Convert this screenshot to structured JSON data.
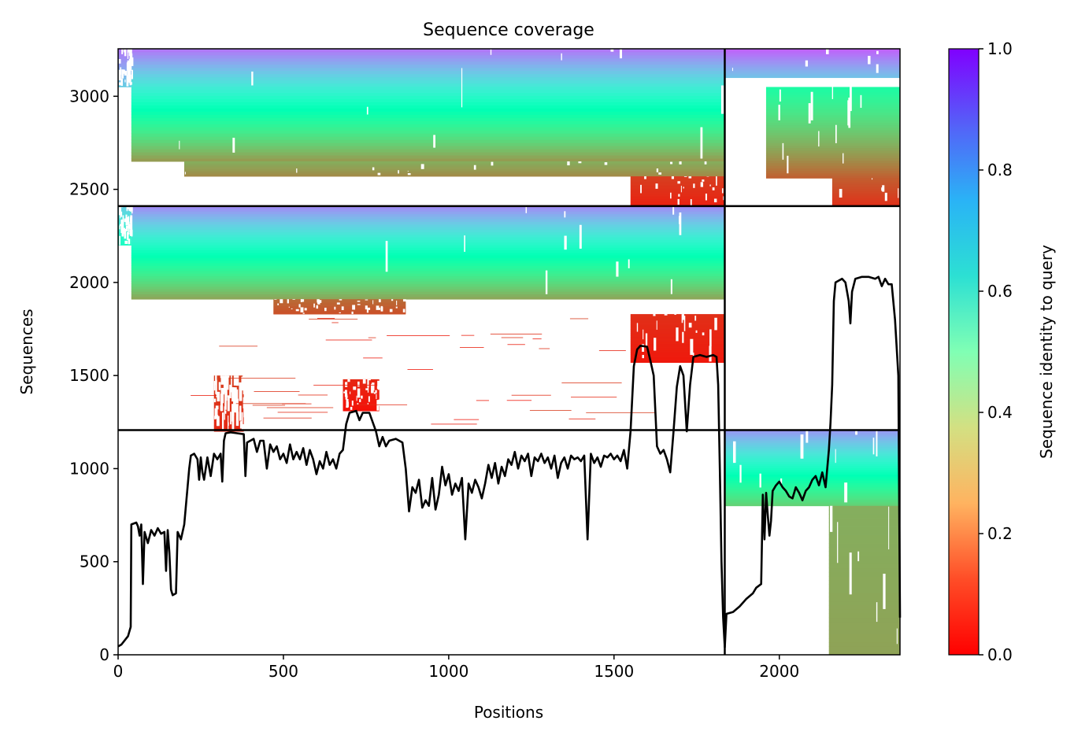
{
  "chart_data": {
    "type": "heatmap",
    "title": "Sequence coverage",
    "xlabel": "Positions",
    "ylabel": "Sequences",
    "xlim": [
      0,
      2365
    ],
    "ylim": [
      0,
      3255
    ],
    "xticks": [
      0,
      500,
      1000,
      1500,
      2000
    ],
    "yticks": [
      0,
      500,
      1000,
      1500,
      2000,
      2500,
      3000
    ],
    "grid": false,
    "colorbar": {
      "label": "Sequence identity to query",
      "colormap": "rainbow_r",
      "min": 0.0,
      "max": 1.0,
      "ticks": [
        0.0,
        0.2,
        0.4,
        0.6,
        0.8,
        1.0
      ]
    },
    "chain_boundaries": {
      "x": [
        1835
      ],
      "y": [
        1207,
        2410
      ]
    },
    "coverage_line": {
      "color": "#000000",
      "points": [
        [
          0,
          45
        ],
        [
          10,
          55
        ],
        [
          30,
          100
        ],
        [
          38,
          150
        ],
        [
          40,
          700
        ],
        [
          55,
          710
        ],
        [
          60,
          690
        ],
        [
          65,
          640
        ],
        [
          70,
          700
        ],
        [
          75,
          380
        ],
        [
          80,
          660
        ],
        [
          90,
          600
        ],
        [
          100,
          670
        ],
        [
          110,
          640
        ],
        [
          120,
          680
        ],
        [
          130,
          650
        ],
        [
          140,
          660
        ],
        [
          145,
          450
        ],
        [
          150,
          670
        ],
        [
          155,
          550
        ],
        [
          160,
          350
        ],
        [
          165,
          320
        ],
        [
          175,
          330
        ],
        [
          180,
          660
        ],
        [
          190,
          620
        ],
        [
          200,
          700
        ],
        [
          210,
          900
        ],
        [
          215,
          1000
        ],
        [
          220,
          1070
        ],
        [
          230,
          1080
        ],
        [
          240,
          1050
        ],
        [
          245,
          940
        ],
        [
          250,
          1060
        ],
        [
          255,
          980
        ],
        [
          260,
          940
        ],
        [
          270,
          1060
        ],
        [
          280,
          960
        ],
        [
          290,
          1080
        ],
        [
          300,
          1050
        ],
        [
          310,
          1080
        ],
        [
          315,
          930
        ],
        [
          320,
          1150
        ],
        [
          325,
          1190
        ],
        [
          340,
          1195
        ],
        [
          360,
          1190
        ],
        [
          380,
          1185
        ],
        [
          385,
          960
        ],
        [
          390,
          1140
        ],
        [
          400,
          1150
        ],
        [
          410,
          1160
        ],
        [
          420,
          1090
        ],
        [
          430,
          1150
        ],
        [
          440,
          1150
        ],
        [
          450,
          1000
        ],
        [
          460,
          1130
        ],
        [
          470,
          1090
        ],
        [
          480,
          1120
        ],
        [
          490,
          1050
        ],
        [
          500,
          1080
        ],
        [
          510,
          1030
        ],
        [
          520,
          1130
        ],
        [
          530,
          1050
        ],
        [
          540,
          1090
        ],
        [
          550,
          1050
        ],
        [
          560,
          1110
        ],
        [
          570,
          1020
        ],
        [
          580,
          1100
        ],
        [
          590,
          1050
        ],
        [
          600,
          970
        ],
        [
          610,
          1040
        ],
        [
          620,
          1000
        ],
        [
          630,
          1090
        ],
        [
          640,
          1020
        ],
        [
          650,
          1050
        ],
        [
          660,
          1000
        ],
        [
          670,
          1080
        ],
        [
          680,
          1100
        ],
        [
          690,
          1240
        ],
        [
          700,
          1300
        ],
        [
          720,
          1310
        ],
        [
          730,
          1260
        ],
        [
          740,
          1300
        ],
        [
          760,
          1300
        ],
        [
          780,
          1200
        ],
        [
          790,
          1120
        ],
        [
          800,
          1170
        ],
        [
          810,
          1120
        ],
        [
          820,
          1150
        ],
        [
          840,
          1160
        ],
        [
          860,
          1140
        ],
        [
          870,
          1000
        ],
        [
          880,
          770
        ],
        [
          890,
          900
        ],
        [
          900,
          870
        ],
        [
          910,
          940
        ],
        [
          920,
          790
        ],
        [
          930,
          830
        ],
        [
          940,
          800
        ],
        [
          950,
          950
        ],
        [
          960,
          780
        ],
        [
          970,
          860
        ],
        [
          980,
          1010
        ],
        [
          990,
          910
        ],
        [
          1000,
          970
        ],
        [
          1010,
          860
        ],
        [
          1020,
          920
        ],
        [
          1030,
          880
        ],
        [
          1040,
          950
        ],
        [
          1050,
          620
        ],
        [
          1060,
          920
        ],
        [
          1070,
          870
        ],
        [
          1080,
          940
        ],
        [
          1090,
          900
        ],
        [
          1100,
          840
        ],
        [
          1110,
          920
        ],
        [
          1120,
          1020
        ],
        [
          1130,
          950
        ],
        [
          1140,
          1030
        ],
        [
          1150,
          920
        ],
        [
          1160,
          1010
        ],
        [
          1170,
          960
        ],
        [
          1180,
          1050
        ],
        [
          1190,
          1020
        ],
        [
          1200,
          1090
        ],
        [
          1210,
          1000
        ],
        [
          1220,
          1070
        ],
        [
          1230,
          1040
        ],
        [
          1240,
          1080
        ],
        [
          1250,
          960
        ],
        [
          1260,
          1060
        ],
        [
          1270,
          1040
        ],
        [
          1280,
          1080
        ],
        [
          1290,
          1030
        ],
        [
          1300,
          1060
        ],
        [
          1310,
          1000
        ],
        [
          1320,
          1070
        ],
        [
          1330,
          950
        ],
        [
          1340,
          1030
        ],
        [
          1350,
          1060
        ],
        [
          1360,
          1000
        ],
        [
          1370,
          1070
        ],
        [
          1380,
          1050
        ],
        [
          1390,
          1060
        ],
        [
          1400,
          1040
        ],
        [
          1410,
          1070
        ],
        [
          1420,
          620
        ],
        [
          1430,
          1080
        ],
        [
          1440,
          1030
        ],
        [
          1450,
          1060
        ],
        [
          1460,
          1010
        ],
        [
          1470,
          1070
        ],
        [
          1480,
          1060
        ],
        [
          1490,
          1080
        ],
        [
          1500,
          1050
        ],
        [
          1510,
          1070
        ],
        [
          1520,
          1040
        ],
        [
          1530,
          1100
        ],
        [
          1540,
          1000
        ],
        [
          1550,
          1200
        ],
        [
          1560,
          1550
        ],
        [
          1570,
          1640
        ],
        [
          1580,
          1660
        ],
        [
          1600,
          1655
        ],
        [
          1610,
          1580
        ],
        [
          1620,
          1500
        ],
        [
          1630,
          1120
        ],
        [
          1640,
          1080
        ],
        [
          1650,
          1100
        ],
        [
          1660,
          1050
        ],
        [
          1670,
          980
        ],
        [
          1680,
          1200
        ],
        [
          1690,
          1440
        ],
        [
          1700,
          1550
        ],
        [
          1710,
          1500
        ],
        [
          1720,
          1200
        ],
        [
          1730,
          1450
        ],
        [
          1740,
          1600
        ],
        [
          1760,
          1610
        ],
        [
          1780,
          1600
        ],
        [
          1800,
          1610
        ],
        [
          1810,
          1600
        ],
        [
          1815,
          1450
        ],
        [
          1820,
          1000
        ],
        [
          1825,
          500
        ],
        [
          1830,
          200
        ],
        [
          1835,
          40
        ],
        [
          1840,
          220
        ],
        [
          1860,
          230
        ],
        [
          1880,
          260
        ],
        [
          1900,
          300
        ],
        [
          1920,
          330
        ],
        [
          1930,
          360
        ],
        [
          1945,
          380
        ],
        [
          1950,
          860
        ],
        [
          1955,
          620
        ],
        [
          1960,
          870
        ],
        [
          1965,
          750
        ],
        [
          1970,
          640
        ],
        [
          1975,
          720
        ],
        [
          1980,
          880
        ],
        [
          1990,
          910
        ],
        [
          2000,
          930
        ],
        [
          2010,
          900
        ],
        [
          2020,
          880
        ],
        [
          2030,
          850
        ],
        [
          2040,
          840
        ],
        [
          2050,
          900
        ],
        [
          2060,
          870
        ],
        [
          2070,
          830
        ],
        [
          2080,
          880
        ],
        [
          2090,
          900
        ],
        [
          2100,
          940
        ],
        [
          2110,
          960
        ],
        [
          2120,
          910
        ],
        [
          2130,
          980
        ],
        [
          2140,
          900
        ],
        [
          2150,
          1100
        ],
        [
          2155,
          1250
        ],
        [
          2160,
          1450
        ],
        [
          2165,
          1900
        ],
        [
          2170,
          2000
        ],
        [
          2180,
          2010
        ],
        [
          2190,
          2020
        ],
        [
          2200,
          2000
        ],
        [
          2210,
          1900
        ],
        [
          2215,
          1780
        ],
        [
          2220,
          1950
        ],
        [
          2230,
          2020
        ],
        [
          2250,
          2030
        ],
        [
          2270,
          2030
        ],
        [
          2290,
          2020
        ],
        [
          2300,
          2030
        ],
        [
          2310,
          1980
        ],
        [
          2320,
          2020
        ],
        [
          2330,
          1990
        ],
        [
          2340,
          1990
        ],
        [
          2350,
          1800
        ],
        [
          2360,
          1500
        ],
        [
          2365,
          200
        ]
      ]
    }
  }
}
